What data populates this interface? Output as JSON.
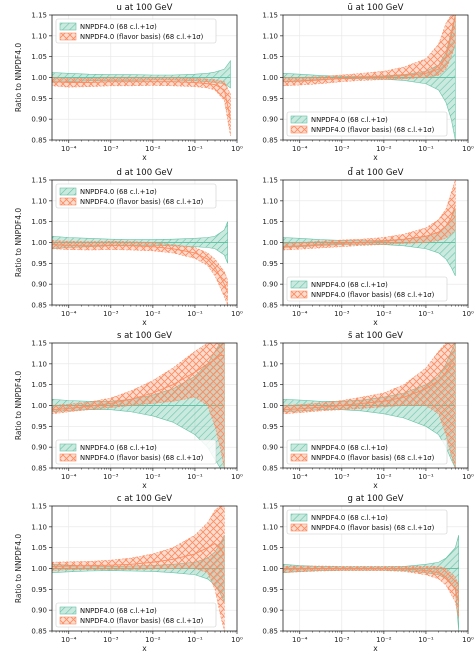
{
  "colors": {
    "green": "#66c2a5",
    "orange": "#fc8d62",
    "grid": "#e6e6e6"
  },
  "chart_data": [
    {
      "type": "area",
      "title": "u at 100 GeV",
      "xlabel": "x",
      "ylabel": "Ratio to NNPDF4.0",
      "xscale": "log",
      "xlim": [
        4e-05,
        1
      ],
      "ylim": [
        0.85,
        1.15
      ],
      "xticks": [
        "10⁻⁴",
        "10⁻³",
        "10⁻²",
        "10⁻¹",
        "10⁰"
      ],
      "yticks": [
        "0.85",
        "0.90",
        "0.95",
        "1.00",
        "1.05",
        "1.10",
        "1.15"
      ],
      "legend_position": "upper left",
      "x": [
        4e-05,
        0.0001,
        0.0003,
        0.001,
        0.003,
        0.01,
        0.03,
        0.1,
        0.2,
        0.3,
        0.5,
        0.7
      ],
      "series": [
        {
          "name": "NNPDF4.0 (68 c.l.+1σ)",
          "center": [
            1,
            1,
            1,
            1,
            1,
            1,
            1,
            1,
            1,
            1,
            1,
            1
          ],
          "lower": [
            0.988,
            0.99,
            0.992,
            0.993,
            0.993,
            0.994,
            0.994,
            0.992,
            0.99,
            0.988,
            0.985,
            0.975
          ],
          "upper": [
            1.012,
            1.01,
            1.008,
            1.007,
            1.007,
            1.006,
            1.006,
            1.008,
            1.01,
            1.013,
            1.02,
            1.04
          ]
        },
        {
          "name": "NNPDF4.0 (flavor basis) (68 c.l.+1σ)",
          "center": [
            0.99,
            0.988,
            0.988,
            0.99,
            0.99,
            0.99,
            0.99,
            0.988,
            0.985,
            0.983,
            0.97,
            0.9
          ],
          "lower": [
            0.98,
            0.977,
            0.978,
            0.98,
            0.98,
            0.981,
            0.98,
            0.978,
            0.975,
            0.97,
            0.945,
            0.86
          ],
          "upper": [
            1.0,
            0.998,
            0.998,
            1.0,
            1.0,
            1.0,
            1.0,
            0.998,
            0.996,
            0.995,
            0.99,
            0.96
          ]
        }
      ]
    },
    {
      "type": "area",
      "title": "ū at 100 GeV",
      "xlabel": "x",
      "ylabel": "",
      "xscale": "log",
      "xlim": [
        4e-05,
        1
      ],
      "ylim": [
        0.85,
        1.15
      ],
      "xticks": [
        "10⁻⁴",
        "10⁻³",
        "10⁻²",
        "10⁻¹",
        "10⁰"
      ],
      "yticks": [
        "0.85",
        "0.90",
        "0.95",
        "1.00",
        "1.05",
        "1.10",
        "1.15"
      ],
      "legend_position": "lower left",
      "x": [
        4e-05,
        0.0001,
        0.0003,
        0.001,
        0.003,
        0.01,
        0.03,
        0.1,
        0.2,
        0.3,
        0.4,
        0.5
      ],
      "series": [
        {
          "name": "NNPDF4.0 (68 c.l.+1σ)",
          "center": [
            1,
            1,
            1,
            1,
            1,
            1,
            1,
            1,
            1,
            1,
            1,
            1
          ],
          "lower": [
            0.99,
            0.992,
            0.995,
            0.997,
            0.997,
            0.996,
            0.993,
            0.985,
            0.97,
            0.94,
            0.9,
            0.85
          ],
          "upper": [
            1.01,
            1.008,
            1.005,
            1.003,
            1.003,
            1.004,
            1.007,
            1.015,
            1.03,
            1.06,
            1.11,
            1.15
          ]
        },
        {
          "name": "NNPDF4.0 (flavor basis) (68 c.l.+1σ)",
          "center": [
            0.99,
            0.991,
            0.994,
            0.998,
            1.0,
            1.002,
            1.005,
            1.01,
            1.02,
            1.05,
            1.1,
            1.15
          ],
          "lower": [
            0.98,
            0.982,
            0.985,
            0.99,
            0.993,
            0.995,
            0.997,
            1.0,
            1.005,
            1.02,
            1.05,
            1.08
          ],
          "upper": [
            1.0,
            1.0,
            1.002,
            1.006,
            1.01,
            1.015,
            1.025,
            1.045,
            1.08,
            1.13,
            1.15,
            1.15
          ]
        }
      ]
    },
    {
      "type": "area",
      "title": "d at 100 GeV",
      "xlabel": "x",
      "ylabel": "Ratio to NNPDF4.0",
      "xscale": "log",
      "xlim": [
        4e-05,
        1
      ],
      "ylim": [
        0.85,
        1.15
      ],
      "xticks": [
        "10⁻⁴",
        "10⁻³",
        "10⁻²",
        "10⁻¹",
        "10⁰"
      ],
      "yticks": [
        "0.85",
        "0.90",
        "0.95",
        "1.00",
        "1.05",
        "1.10",
        "1.15"
      ],
      "legend_position": "upper left",
      "x": [
        4e-05,
        0.0001,
        0.0003,
        0.001,
        0.003,
        0.01,
        0.03,
        0.1,
        0.2,
        0.3,
        0.5,
        0.6
      ],
      "series": [
        {
          "name": "NNPDF4.0 (68 c.l.+1σ)",
          "center": [
            1,
            1,
            1,
            1,
            1,
            1,
            1,
            1,
            1,
            1,
            1,
            1
          ],
          "lower": [
            0.985,
            0.988,
            0.99,
            0.992,
            0.993,
            0.993,
            0.992,
            0.99,
            0.988,
            0.985,
            0.97,
            0.95
          ],
          "upper": [
            1.015,
            1.012,
            1.01,
            1.008,
            1.007,
            1.007,
            1.008,
            1.01,
            1.012,
            1.015,
            1.03,
            1.05
          ]
        },
        {
          "name": "NNPDF4.0 (flavor basis) (68 c.l.+1σ)",
          "center": [
            0.995,
            0.993,
            0.992,
            0.993,
            0.992,
            0.99,
            0.985,
            0.975,
            0.96,
            0.94,
            0.9,
            0.88
          ],
          "lower": [
            0.985,
            0.983,
            0.982,
            0.983,
            0.982,
            0.98,
            0.975,
            0.962,
            0.945,
            0.92,
            0.87,
            0.85
          ],
          "upper": [
            1.005,
            1.003,
            1.002,
            1.003,
            1.002,
            1.0,
            0.995,
            0.988,
            0.975,
            0.96,
            0.93,
            0.91
          ]
        }
      ]
    },
    {
      "type": "area",
      "title": "d̄ at 100 GeV",
      "xlabel": "x",
      "ylabel": "",
      "xscale": "log",
      "xlim": [
        4e-05,
        1
      ],
      "ylim": [
        0.85,
        1.15
      ],
      "xticks": [
        "10⁻⁴",
        "10⁻³",
        "10⁻²",
        "10⁻¹",
        "10⁰"
      ],
      "yticks": [
        "0.85",
        "0.90",
        "0.95",
        "1.00",
        "1.05",
        "1.10",
        "1.15"
      ],
      "legend_position": "lower left",
      "x": [
        4e-05,
        0.0001,
        0.0003,
        0.001,
        0.003,
        0.01,
        0.03,
        0.1,
        0.2,
        0.3,
        0.4,
        0.5
      ],
      "series": [
        {
          "name": "NNPDF4.0 (68 c.l.+1σ)",
          "center": [
            1,
            1,
            1,
            1,
            1,
            1,
            1,
            1,
            1,
            1,
            1,
            1
          ],
          "lower": [
            0.988,
            0.99,
            0.993,
            0.995,
            0.996,
            0.995,
            0.992,
            0.985,
            0.975,
            0.96,
            0.94,
            0.92
          ],
          "upper": [
            1.012,
            1.01,
            1.007,
            1.005,
            1.004,
            1.005,
            1.008,
            1.015,
            1.025,
            1.04,
            1.06,
            1.08
          ]
        },
        {
          "name": "NNPDF4.0 (flavor basis) (68 c.l.+1σ)",
          "center": [
            0.99,
            0.992,
            0.995,
            0.998,
            1.0,
            1.003,
            1.008,
            1.015,
            1.025,
            1.04,
            1.06,
            1.09
          ],
          "lower": [
            0.982,
            0.984,
            0.987,
            0.99,
            0.993,
            0.995,
            0.998,
            1.0,
            1.005,
            1.01,
            1.02,
            1.03
          ],
          "upper": [
            0.998,
            1.0,
            1.003,
            1.006,
            1.008,
            1.012,
            1.02,
            1.035,
            1.055,
            1.08,
            1.12,
            1.15
          ]
        }
      ]
    },
    {
      "type": "area",
      "title": "s at 100 GeV",
      "xlabel": "x",
      "ylabel": "Ratio to NNPDF4.0",
      "xscale": "log",
      "xlim": [
        4e-05,
        1
      ],
      "ylim": [
        0.85,
        1.15
      ],
      "xticks": [
        "10⁻⁴",
        "10⁻³",
        "10⁻²",
        "10⁻¹",
        "10⁰"
      ],
      "yticks": [
        "0.85",
        "0.90",
        "0.95",
        "1.00",
        "1.05",
        "1.10",
        "1.15"
      ],
      "legend_position": "lower left",
      "x": [
        4e-05,
        0.0001,
        0.0003,
        0.001,
        0.003,
        0.01,
        0.03,
        0.1,
        0.2,
        0.3,
        0.4,
        0.5
      ],
      "series": [
        {
          "name": "NNPDF4.0 (68 c.l.+1σ)",
          "center": [
            1,
            1,
            1,
            1,
            1,
            1,
            1,
            1,
            1,
            1,
            1,
            1
          ],
          "lower": [
            0.985,
            0.988,
            0.99,
            0.99,
            0.985,
            0.975,
            0.96,
            0.93,
            0.9,
            0.87,
            0.85,
            0.85
          ],
          "upper": [
            1.015,
            1.012,
            1.01,
            1.01,
            1.015,
            1.025,
            1.04,
            1.07,
            1.1,
            1.13,
            1.15,
            1.15
          ]
        },
        {
          "name": "NNPDF4.0 (flavor basis) (68 c.l.+1σ)",
          "center": [
            0.99,
            0.993,
            0.998,
            1.005,
            1.015,
            1.03,
            1.05,
            1.08,
            1.1,
            1.11,
            1.12,
            1.12
          ],
          "lower": [
            0.98,
            0.985,
            0.99,
            0.995,
            1.0,
            1.005,
            1.01,
            1.02,
            1.0,
            0.95,
            0.9,
            0.85
          ],
          "upper": [
            1.0,
            1.003,
            1.008,
            1.018,
            1.035,
            1.06,
            1.09,
            1.13,
            1.15,
            1.15,
            1.15,
            1.15
          ]
        }
      ]
    },
    {
      "type": "area",
      "title": "s̄ at 100 GeV",
      "xlabel": "x",
      "ylabel": "",
      "xscale": "log",
      "xlim": [
        4e-05,
        1
      ],
      "ylim": [
        0.85,
        1.15
      ],
      "xticks": [
        "10⁻⁴",
        "10⁻³",
        "10⁻²",
        "10⁻¹",
        "10⁰"
      ],
      "yticks": [
        "0.85",
        "0.90",
        "0.95",
        "1.00",
        "1.05",
        "1.10",
        "1.15"
      ],
      "legend_position": "lower left",
      "x": [
        4e-05,
        0.0001,
        0.0003,
        0.001,
        0.003,
        0.01,
        0.03,
        0.1,
        0.2,
        0.3,
        0.4,
        0.5
      ],
      "series": [
        {
          "name": "NNPDF4.0 (68 c.l.+1σ)",
          "center": [
            1,
            1,
            1,
            1,
            1,
            1,
            1,
            1,
            1,
            1,
            1,
            1
          ],
          "lower": [
            0.985,
            0.987,
            0.99,
            0.99,
            0.987,
            0.98,
            0.97,
            0.95,
            0.93,
            0.9,
            0.87,
            0.85
          ],
          "upper": [
            1.015,
            1.013,
            1.01,
            1.01,
            1.013,
            1.02,
            1.03,
            1.05,
            1.07,
            1.1,
            1.13,
            1.15
          ]
        },
        {
          "name": "NNPDF4.0 (flavor basis) (68 c.l.+1σ)",
          "center": [
            0.99,
            0.992,
            0.996,
            1.0,
            1.005,
            1.01,
            1.02,
            1.04,
            1.06,
            1.08,
            1.1,
            1.1
          ],
          "lower": [
            0.98,
            0.983,
            0.987,
            0.99,
            0.993,
            0.997,
            1.0,
            1.0,
            0.98,
            0.93,
            0.88,
            0.85
          ],
          "upper": [
            1.0,
            1.002,
            1.006,
            1.012,
            1.02,
            1.03,
            1.05,
            1.09,
            1.13,
            1.15,
            1.15,
            1.15
          ]
        }
      ]
    },
    {
      "type": "area",
      "title": "c at 100 GeV",
      "xlabel": "x",
      "ylabel": "Ratio to NNPDF4.0",
      "xscale": "log",
      "xlim": [
        4e-05,
        1
      ],
      "ylim": [
        0.85,
        1.15
      ],
      "xticks": [
        "10⁻⁴",
        "10⁻³",
        "10⁻²",
        "10⁻¹",
        "10⁰"
      ],
      "yticks": [
        "0.85",
        "0.90",
        "0.95",
        "1.00",
        "1.05",
        "1.10",
        "1.15"
      ],
      "legend_position": "lower left",
      "x": [
        4e-05,
        0.0001,
        0.0003,
        0.001,
        0.003,
        0.01,
        0.03,
        0.1,
        0.2,
        0.3,
        0.4,
        0.5
      ],
      "series": [
        {
          "name": "NNPDF4.0 (68 c.l.+1σ)",
          "center": [
            1,
            1,
            1,
            1,
            1,
            1,
            1,
            1,
            1,
            1,
            1,
            1
          ],
          "lower": [
            0.99,
            0.992,
            0.994,
            0.995,
            0.994,
            0.993,
            0.99,
            0.985,
            0.975,
            0.96,
            0.94,
            0.92
          ],
          "upper": [
            1.01,
            1.008,
            1.006,
            1.005,
            1.006,
            1.007,
            1.01,
            1.015,
            1.025,
            1.04,
            1.06,
            1.08
          ]
        },
        {
          "name": "NNPDF4.0 (flavor basis) (68 c.l.+1σ)",
          "center": [
            1.005,
            1.006,
            1.007,
            1.008,
            1.01,
            1.015,
            1.022,
            1.035,
            1.05,
            1.06,
            1.05,
            1.03
          ],
          "lower": [
            0.995,
            0.997,
            0.998,
            0.998,
            0.998,
            0.999,
            1.0,
            1.0,
            0.99,
            0.95,
            0.89,
            0.85
          ],
          "upper": [
            1.015,
            1.016,
            1.017,
            1.02,
            1.025,
            1.035,
            1.05,
            1.08,
            1.11,
            1.14,
            1.15,
            1.15
          ]
        }
      ]
    },
    {
      "type": "area",
      "title": "g at 100 GeV",
      "xlabel": "x",
      "ylabel": "",
      "xscale": "log",
      "xlim": [
        4e-05,
        1
      ],
      "ylim": [
        0.85,
        1.15
      ],
      "xticks": [
        "10⁻⁴",
        "10⁻³",
        "10⁻²",
        "10⁻¹",
        "10⁰"
      ],
      "yticks": [
        "0.85",
        "0.90",
        "0.95",
        "1.00",
        "1.05",
        "1.10",
        "1.15"
      ],
      "legend_position": "upper left",
      "x": [
        4e-05,
        0.0001,
        0.0003,
        0.001,
        0.003,
        0.01,
        0.03,
        0.1,
        0.2,
        0.3,
        0.5,
        0.6
      ],
      "series": [
        {
          "name": "NNPDF4.0 (68 c.l.+1σ)",
          "center": [
            1,
            1,
            1,
            1,
            1,
            1,
            1,
            1,
            1,
            1,
            1,
            1
          ],
          "lower": [
            0.99,
            0.993,
            0.995,
            0.996,
            0.996,
            0.996,
            0.995,
            0.99,
            0.985,
            0.975,
            0.95,
            0.85
          ],
          "upper": [
            1.01,
            1.007,
            1.005,
            1.004,
            1.004,
            1.004,
            1.005,
            1.01,
            1.015,
            1.025,
            1.05,
            1.08
          ]
        },
        {
          "name": "NNPDF4.0 (flavor basis) (68 c.l.+1σ)",
          "center": [
            0.998,
            0.999,
            1.0,
            1.0,
            1.0,
            1.0,
            0.999,
            0.995,
            0.99,
            0.98,
            0.95,
            0.92
          ],
          "lower": [
            0.99,
            0.992,
            0.994,
            0.995,
            0.995,
            0.995,
            0.993,
            0.985,
            0.975,
            0.96,
            0.92,
            0.88
          ],
          "upper": [
            1.006,
            1.006,
            1.006,
            1.005,
            1.005,
            1.005,
            1.005,
            1.005,
            1.005,
            1.0,
            0.98,
            0.96
          ]
        }
      ]
    }
  ]
}
